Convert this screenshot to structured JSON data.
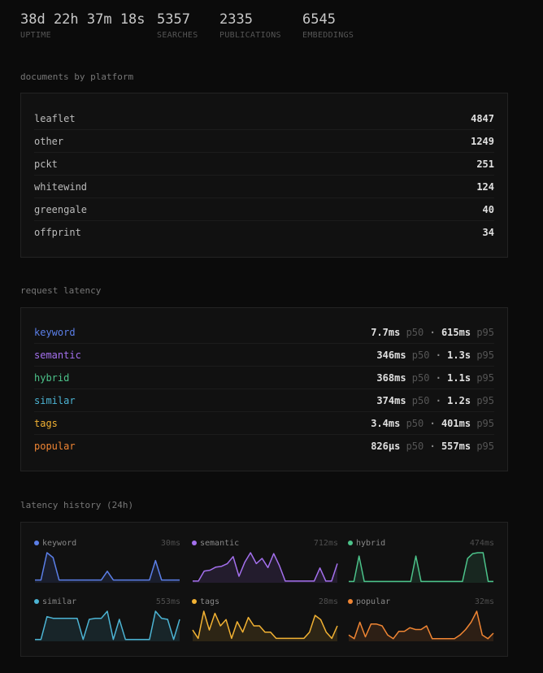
{
  "stats": [
    {
      "value": "38d 22h 37m 18s",
      "label": "UPTIME"
    },
    {
      "value": "5357",
      "label": "SEARCHES"
    },
    {
      "value": "2335",
      "label": "PUBLICATIONS"
    },
    {
      "value": "6545",
      "label": "EMBEDDINGS"
    }
  ],
  "platforms": {
    "title": "documents by platform",
    "rows": [
      {
        "name": "leaflet",
        "count": 4847
      },
      {
        "name": "other",
        "count": 1249
      },
      {
        "name": "pckt",
        "count": 251
      },
      {
        "name": "whitewind",
        "count": 124
      },
      {
        "name": "greengale",
        "count": 40
      },
      {
        "name": "offprint",
        "count": 34
      }
    ]
  },
  "latency": {
    "title": "request latency",
    "p50_label": "p50",
    "p95_label": "p95",
    "separator": "·",
    "rows": [
      {
        "name": "keyword",
        "color": "#5b7fe8",
        "p50": "7.7ms",
        "p95": "615ms"
      },
      {
        "name": "semantic",
        "color": "#a470ee",
        "p50": "346ms",
        "p95": "1.3s"
      },
      {
        "name": "hybrid",
        "color": "#4cc38a",
        "p50": "368ms",
        "p95": "1.1s"
      },
      {
        "name": "similar",
        "color": "#4cb4d4",
        "p50": "374ms",
        "p95": "1.2s"
      },
      {
        "name": "tags",
        "color": "#f2b233",
        "p50": "3.4ms",
        "p95": "401ms"
      },
      {
        "name": "popular",
        "color": "#f08533",
        "p50": "826µs",
        "p95": "557ms"
      }
    ]
  },
  "history": {
    "title": "latency history (24h)",
    "charts": [
      {
        "type": "area",
        "name": "keyword",
        "color": "#5b7fe8",
        "max_label": "30ms",
        "values": [
          2,
          2,
          30,
          25,
          2,
          2,
          2,
          2,
          2,
          2,
          2,
          2,
          11,
          2,
          2,
          2,
          2,
          2,
          2,
          2,
          22,
          2,
          2,
          2,
          2
        ]
      },
      {
        "type": "area",
        "name": "semantic",
        "color": "#a470ee",
        "max_label": "712ms",
        "values": [
          20,
          20,
          250,
          270,
          340,
          360,
          420,
          580,
          130,
          450,
          670,
          420,
          540,
          330,
          650,
          370,
          20,
          20,
          20,
          20,
          20,
          20,
          320,
          20,
          20,
          420
        ]
      },
      {
        "type": "area",
        "name": "hybrid",
        "color": "#4cc38a",
        "max_label": "474ms",
        "values": [
          8,
          8,
          420,
          8,
          8,
          8,
          8,
          8,
          8,
          8,
          8,
          8,
          8,
          420,
          8,
          8,
          8,
          8,
          8,
          8,
          8,
          8,
          8,
          380,
          460,
          474,
          474,
          8,
          8
        ]
      },
      {
        "type": "area",
        "name": "similar",
        "color": "#4cb4d4",
        "max_label": "553ms",
        "values": [
          20,
          20,
          450,
          420,
          420,
          420,
          420,
          420,
          20,
          400,
          420,
          420,
          553,
          20,
          400,
          20,
          20,
          20,
          20,
          20,
          553,
          420,
          400,
          20,
          400
        ]
      },
      {
        "type": "area",
        "name": "tags",
        "color": "#f2b233",
        "max_label": "28ms",
        "values": [
          10,
          2,
          28,
          10,
          26,
          14,
          20,
          2,
          18,
          8,
          22,
          14,
          14,
          8,
          8,
          2,
          2,
          2,
          2,
          2,
          2,
          8,
          24,
          20,
          8,
          2,
          14
        ]
      },
      {
        "type": "area",
        "name": "popular",
        "color": "#f08533",
        "max_label": "32ms",
        "values": [
          6,
          2,
          20,
          4,
          18,
          18,
          16,
          6,
          2,
          10,
          10,
          14,
          12,
          12,
          16,
          2,
          2,
          2,
          2,
          2,
          6,
          12,
          20,
          32,
          6,
          2,
          8
        ]
      }
    ]
  }
}
